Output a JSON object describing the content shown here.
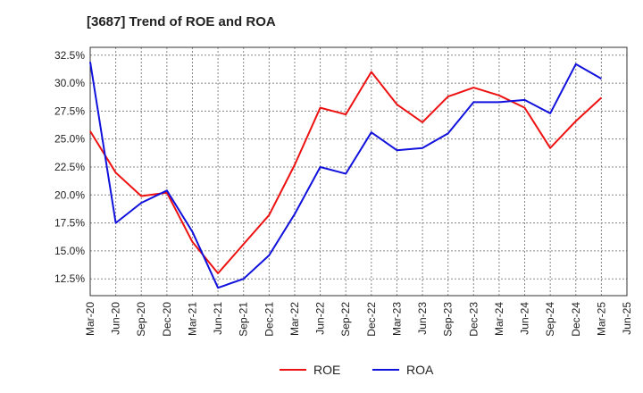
{
  "chart_data": {
    "type": "line",
    "title": "[3687]  Trend of ROE and ROA",
    "xlabel": "",
    "ylabel": "",
    "x": [
      "Mar-20",
      "Jun-20",
      "Sep-20",
      "Dec-20",
      "Mar-21",
      "Jun-21",
      "Sep-21",
      "Dec-21",
      "Mar-22",
      "Jun-22",
      "Sep-22",
      "Dec-22",
      "Mar-23",
      "Jun-23",
      "Sep-23",
      "Dec-23",
      "Mar-24",
      "Jun-24",
      "Sep-24",
      "Dec-24",
      "Mar-25"
    ],
    "x_tick_labels": [
      "Mar-20",
      "Jun-20",
      "Sep-20",
      "Dec-20",
      "Mar-21",
      "Jun-21",
      "Sep-21",
      "Dec-21",
      "Mar-22",
      "Jun-22",
      "Sep-22",
      "Dec-22",
      "Mar-23",
      "Jun-23",
      "Sep-23",
      "Dec-23",
      "Mar-24",
      "Jun-24",
      "Sep-24",
      "Dec-24",
      "Mar-25",
      "Jun-25"
    ],
    "y_tick_labels": [
      "12.5%",
      "15.0%",
      "17.5%",
      "20.0%",
      "22.5%",
      "25.0%",
      "27.5%",
      "30.0%",
      "32.5%"
    ],
    "y_ticks": [
      12.5,
      15.0,
      17.5,
      20.0,
      22.5,
      25.0,
      27.5,
      30.0,
      32.5
    ],
    "ylim": [
      11.0,
      33.2
    ],
    "grid": true,
    "legend_position": "bottom-center",
    "series": [
      {
        "name": "ROE",
        "color": "#ee1111",
        "values": [
          25.7,
          22.0,
          19.9,
          20.2,
          15.8,
          13.0,
          15.6,
          18.2,
          22.7,
          27.8,
          27.2,
          31.0,
          28.1,
          26.5,
          28.8,
          29.6,
          28.9,
          27.8,
          24.2,
          26.6,
          28.7
        ]
      },
      {
        "name": "ROA",
        "color": "#1111dd",
        "values": [
          31.9,
          17.5,
          19.3,
          20.4,
          16.7,
          11.7,
          12.5,
          14.6,
          18.3,
          22.5,
          21.9,
          25.6,
          24.0,
          24.2,
          25.5,
          28.3,
          28.3,
          28.5,
          27.3,
          31.7,
          30.4
        ]
      }
    ]
  }
}
